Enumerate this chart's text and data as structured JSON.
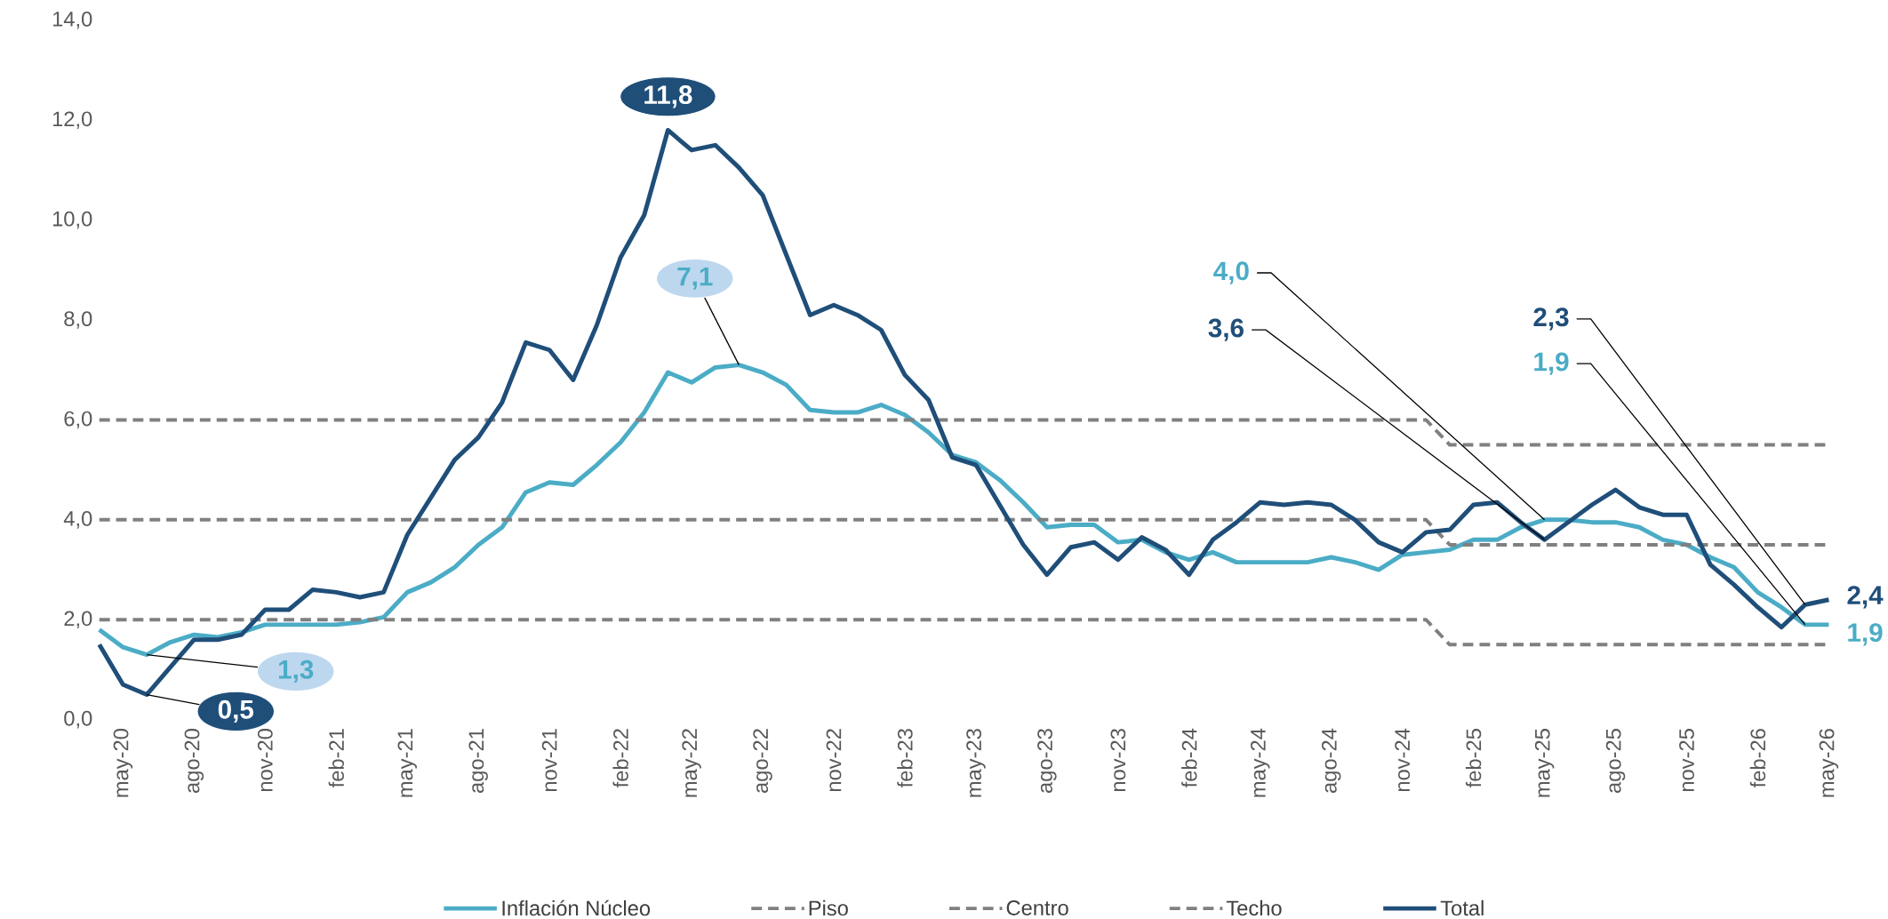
{
  "chart_data": {
    "type": "line",
    "x": [
      "2020-04",
      "2020-05",
      "2020-06",
      "2020-07",
      "2020-08",
      "2020-09",
      "2020-10",
      "2020-11",
      "2020-12",
      "2021-01",
      "2021-02",
      "2021-03",
      "2021-04",
      "2021-05",
      "2021-06",
      "2021-07",
      "2021-08",
      "2021-09",
      "2021-10",
      "2021-11",
      "2021-12",
      "2022-01",
      "2022-02",
      "2022-03",
      "2022-04",
      "2022-05",
      "2022-06",
      "2022-07",
      "2022-08",
      "2022-09",
      "2022-10",
      "2022-11",
      "2022-12",
      "2023-01",
      "2023-02",
      "2023-03",
      "2023-04",
      "2023-05",
      "2023-06",
      "2023-07",
      "2023-08",
      "2023-09",
      "2023-10",
      "2023-11",
      "2023-12",
      "2024-01",
      "2024-02",
      "2024-03",
      "2024-04",
      "2024-05",
      "2024-06",
      "2024-07",
      "2024-08",
      "2024-09",
      "2024-10",
      "2024-11",
      "2024-12",
      "2025-01",
      "2025-02",
      "2025-03",
      "2025-04",
      "2025-05",
      "2025-06",
      "2025-07",
      "2025-08",
      "2025-09",
      "2025-10",
      "2025-11",
      "2025-12",
      "2026-01",
      "2026-02",
      "2026-03",
      "2026-04",
      "2026-05"
    ],
    "series": [
      {
        "name": "Inflación Núcleo",
        "color": "#4bacc6",
        "values": [
          1.8,
          1.45,
          1.3,
          1.55,
          1.7,
          1.65,
          1.75,
          1.9,
          1.9,
          1.9,
          1.9,
          1.95,
          2.05,
          2.55,
          2.75,
          3.05,
          3.5,
          3.85,
          4.55,
          4.75,
          4.7,
          5.1,
          5.55,
          6.15,
          6.95,
          6.75,
          7.05,
          7.1,
          6.95,
          6.7,
          6.2,
          6.15,
          6.15,
          6.3,
          6.1,
          5.75,
          5.3,
          5.15,
          4.8,
          4.35,
          3.85,
          3.9,
          3.9,
          3.55,
          3.6,
          3.35,
          3.2,
          3.35,
          3.15,
          3.15,
          3.15,
          3.15,
          3.25,
          3.15,
          3.0,
          3.3,
          3.35,
          3.4,
          3.6,
          3.6,
          3.85,
          4.0,
          4.0,
          3.95,
          3.95,
          3.85,
          3.6,
          3.5,
          3.25,
          3.05,
          2.55,
          2.25,
          1.9,
          1.9
        ]
      },
      {
        "name": "Piso",
        "color": "#808080",
        "line_style": "dashed",
        "values": [
          2,
          2,
          2,
          2,
          2,
          2,
          2,
          2,
          2,
          2,
          2,
          2,
          2,
          2,
          2,
          2,
          2,
          2,
          2,
          2,
          2,
          2,
          2,
          2,
          2,
          2,
          2,
          2,
          2,
          2,
          2,
          2,
          2,
          2,
          2,
          2,
          2,
          2,
          2,
          2,
          2,
          2,
          2,
          2,
          2,
          2,
          2,
          2,
          2,
          2,
          2,
          2,
          2,
          2,
          2,
          2,
          2,
          1.5,
          1.5,
          1.5,
          1.5,
          1.5,
          1.5,
          1.5,
          1.5,
          1.5,
          1.5,
          1.5,
          1.5,
          1.5,
          1.5,
          1.5,
          1.5,
          1.5
        ]
      },
      {
        "name": "Centro",
        "color": "#808080",
        "line_style": "dashed",
        "values": [
          4,
          4,
          4,
          4,
          4,
          4,
          4,
          4,
          4,
          4,
          4,
          4,
          4,
          4,
          4,
          4,
          4,
          4,
          4,
          4,
          4,
          4,
          4,
          4,
          4,
          4,
          4,
          4,
          4,
          4,
          4,
          4,
          4,
          4,
          4,
          4,
          4,
          4,
          4,
          4,
          4,
          4,
          4,
          4,
          4,
          4,
          4,
          4,
          4,
          4,
          4,
          4,
          4,
          4,
          4,
          4,
          4,
          3.5,
          3.5,
          3.5,
          3.5,
          3.5,
          3.5,
          3.5,
          3.5,
          3.5,
          3.5,
          3.5,
          3.5,
          3.5,
          3.5,
          3.5,
          3.5,
          3.5
        ]
      },
      {
        "name": "Techo",
        "color": "#808080",
        "line_style": "dashed",
        "values": [
          6,
          6,
          6,
          6,
          6,
          6,
          6,
          6,
          6,
          6,
          6,
          6,
          6,
          6,
          6,
          6,
          6,
          6,
          6,
          6,
          6,
          6,
          6,
          6,
          6,
          6,
          6,
          6,
          6,
          6,
          6,
          6,
          6,
          6,
          6,
          6,
          6,
          6,
          6,
          6,
          6,
          6,
          6,
          6,
          6,
          6,
          6,
          6,
          6,
          6,
          6,
          6,
          6,
          6,
          6,
          6,
          6,
          5.5,
          5.5,
          5.5,
          5.5,
          5.5,
          5.5,
          5.5,
          5.5,
          5.5,
          5.5,
          5.5,
          5.5,
          5.5,
          5.5,
          5.5,
          5.5,
          5.5
        ]
      },
      {
        "name": "Total",
        "color": "#1f4e79",
        "values": [
          1.5,
          0.7,
          0.5,
          1.05,
          1.6,
          1.6,
          1.7,
          2.2,
          2.2,
          2.6,
          2.55,
          2.45,
          2.55,
          3.7,
          4.45,
          5.2,
          5.65,
          6.35,
          7.55,
          7.4,
          6.8,
          7.9,
          9.25,
          10.1,
          11.8,
          11.4,
          11.5,
          11.05,
          10.5,
          9.3,
          8.1,
          8.3,
          8.1,
          7.8,
          6.9,
          6.4,
          5.25,
          5.1,
          4.3,
          3.5,
          2.9,
          3.45,
          3.55,
          3.2,
          3.65,
          3.4,
          2.9,
          3.6,
          3.95,
          4.35,
          4.3,
          4.35,
          4.3,
          4.0,
          3.55,
          3.35,
          3.75,
          3.8,
          4.3,
          4.35,
          3.95,
          3.6,
          3.95,
          4.3,
          4.6,
          4.25,
          4.1,
          4.1,
          3.1,
          2.7,
          2.25,
          1.85,
          2.3,
          2.4
        ]
      }
    ],
    "xlim": [
      "2020-04",
      "2026-05"
    ],
    "xticks": [
      {
        "value": "2020-05",
        "label": "may-20"
      },
      {
        "value": "2020-08",
        "label": "ago-20"
      },
      {
        "value": "2020-11",
        "label": "nov-20"
      },
      {
        "value": "2021-02",
        "label": "feb-21"
      },
      {
        "value": "2021-05",
        "label": "may-21"
      },
      {
        "value": "2021-08",
        "label": "ago-21"
      },
      {
        "value": "2021-11",
        "label": "nov-21"
      },
      {
        "value": "2022-02",
        "label": "feb-22"
      },
      {
        "value": "2022-05",
        "label": "may-22"
      },
      {
        "value": "2022-08",
        "label": "ago-22"
      },
      {
        "value": "2022-11",
        "label": "nov-22"
      },
      {
        "value": "2023-02",
        "label": "feb-23"
      },
      {
        "value": "2023-05",
        "label": "may-23"
      },
      {
        "value": "2023-08",
        "label": "ago-23"
      },
      {
        "value": "2023-11",
        "label": "nov-23"
      },
      {
        "value": "2024-02",
        "label": "feb-24"
      },
      {
        "value": "2024-05",
        "label": "may-24"
      },
      {
        "value": "2024-08",
        "label": "ago-24"
      },
      {
        "value": "2024-11",
        "label": "nov-24"
      },
      {
        "value": "2025-02",
        "label": "feb-25"
      },
      {
        "value": "2025-05",
        "label": "may-25"
      },
      {
        "value": "2025-08",
        "label": "ago-25"
      },
      {
        "value": "2025-11",
        "label": "nov-25"
      },
      {
        "value": "2026-02",
        "label": "feb-26"
      },
      {
        "value": "2026-05",
        "label": "may-26"
      }
    ],
    "ylim": [
      0,
      14
    ],
    "yticks": [
      {
        "value": 0,
        "label": "0,0"
      },
      {
        "value": 2,
        "label": "2,0"
      },
      {
        "value": 4,
        "label": "4,0"
      },
      {
        "value": 6,
        "label": "6,0"
      },
      {
        "value": 8,
        "label": "8,0"
      },
      {
        "value": 10,
        "label": "10,0"
      },
      {
        "value": 12,
        "label": "12,0"
      },
      {
        "value": 14,
        "label": "14,0"
      }
    ],
    "legend": "bottom",
    "annotations": [
      {
        "text": "11,8",
        "x": "2022-04",
        "y": 11.8
      },
      {
        "text": "7,1",
        "x": "2022-07",
        "y": 7.1
      },
      {
        "text": "1,3",
        "x": "2020-06",
        "y": 1.3
      },
      {
        "text": "0,5",
        "x": "2020-06",
        "y": 0.5
      },
      {
        "text": "4,0",
        "x": "2025-05",
        "y": 4.0
      },
      {
        "text": "3,6",
        "x": "2025-05",
        "y": 3.6
      },
      {
        "text": "2,3",
        "x": "2026-04",
        "y": 2.3
      },
      {
        "text": "1,9",
        "x": "2026-04",
        "y": 1.9
      },
      {
        "text": "2,4",
        "x": "2026-05",
        "y": 2.4
      },
      {
        "text": "1,9",
        "x": "2026-05",
        "y": 1.9
      }
    ]
  }
}
